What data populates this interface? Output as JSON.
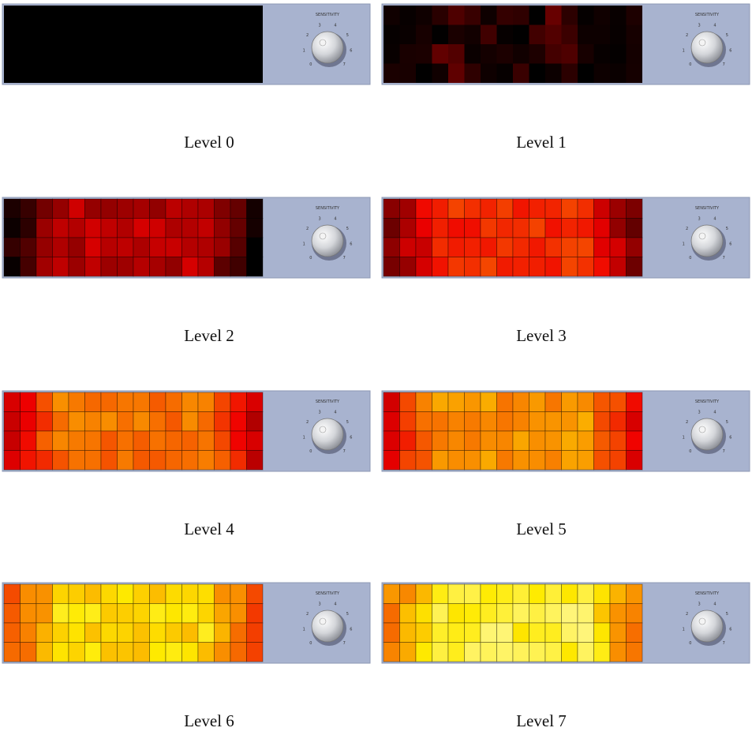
{
  "panels": [
    {
      "caption": "Level 0",
      "knob_label": "SENSITIVITY",
      "knob_scale": [
        0,
        1,
        2,
        3,
        4,
        5,
        6,
        7
      ]
    },
    {
      "caption": "Level 1",
      "knob_label": "SENSITIVITY",
      "knob_scale": [
        0,
        1,
        2,
        3,
        4,
        5,
        6,
        7
      ]
    },
    {
      "caption": "Level 2",
      "knob_label": "SENSITIVITY",
      "knob_scale": [
        0,
        1,
        2,
        3,
        4,
        5,
        6,
        7
      ]
    },
    {
      "caption": "Level 3",
      "knob_label": "SENSITIVITY",
      "knob_scale": [
        0,
        1,
        2,
        3,
        4,
        5,
        6,
        7
      ]
    },
    {
      "caption": "Level 4",
      "knob_label": "SENSITIVITY",
      "knob_scale": [
        0,
        1,
        2,
        3,
        4,
        5,
        6,
        7
      ]
    },
    {
      "caption": "Level 5",
      "knob_label": "SENSITIVITY",
      "knob_scale": [
        0,
        1,
        2,
        3,
        4,
        5,
        6,
        7
      ]
    },
    {
      "caption": "Level 6",
      "knob_label": "SENSITIVITY",
      "knob_scale": [
        0,
        1,
        2,
        3,
        4,
        5,
        6,
        7
      ]
    },
    {
      "caption": "Level 7",
      "knob_label": "SENSITIVITY",
      "knob_scale": [
        0,
        1,
        2,
        3,
        4,
        5,
        6,
        7
      ]
    }
  ]
}
